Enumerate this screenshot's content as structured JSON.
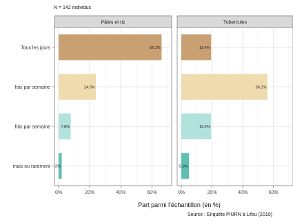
{
  "chart_data": {
    "type": "bar",
    "orientation": "horizontal",
    "note": "N = 142 individus",
    "caption": "Source : Enquête PIURN à Lifou (2019)",
    "xlabel": "Part parmi l'échantillon (en %)",
    "x_ticks": [
      "0%",
      "20%",
      "40%",
      "60%"
    ],
    "xlim": [
      0,
      70
    ],
    "grid": true,
    "categories": [
      "Tous les jours",
      "fois par semaine",
      "fois par semaine",
      "mais ou rarement"
    ],
    "colors": [
      "#c9a071",
      "#eedcaf",
      "#b2e2dc",
      "#5fbfb0"
    ],
    "panels": [
      {
        "name": "Pâtes et riz",
        "values": [
          66.2,
          24.0,
          7.8,
          2.0
        ],
        "labels": [
          "66.2%",
          "24.0%",
          "7.8%",
          "2%"
        ]
      },
      {
        "name": "Tubercules",
        "values": [
          19.4,
          56.1,
          19.4,
          5.0
        ],
        "labels": [
          "19.4%",
          "56.1%",
          "19.4%",
          "5.0%"
        ]
      }
    ]
  }
}
